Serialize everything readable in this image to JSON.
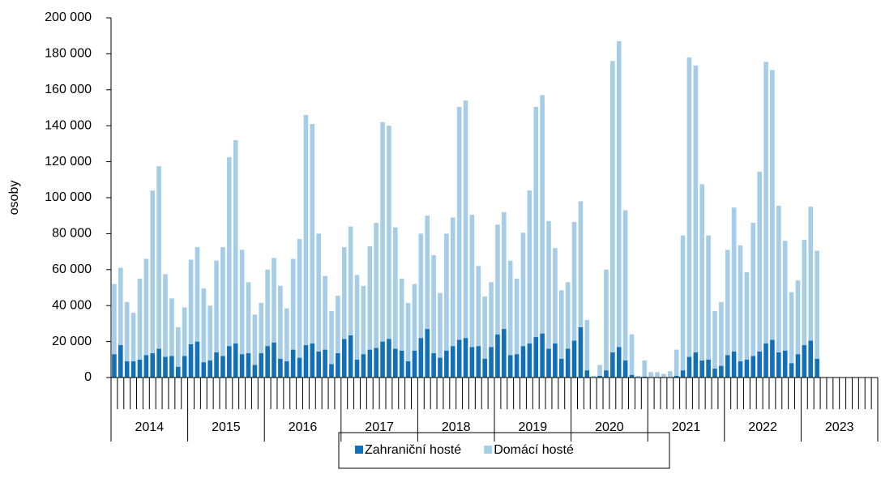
{
  "chart_data": {
    "type": "stacked-bar",
    "y_label": "osoby",
    "categories": [
      null,
      null,
      null,
      null,
      null,
      null,
      null,
      null,
      null,
      null,
      null,
      null,
      null,
      null,
      null,
      null,
      null,
      null,
      null,
      null,
      null,
      null,
      null,
      null,
      null,
      null,
      null,
      null,
      null,
      null,
      null,
      null,
      null,
      null,
      null,
      null,
      null,
      null,
      null,
      null,
      null,
      null,
      null,
      null,
      null,
      null,
      null,
      null,
      null,
      null,
      null,
      null,
      null,
      null,
      null,
      null,
      null,
      null,
      null,
      null,
      null,
      null,
      null,
      null,
      null,
      null,
      null,
      null,
      null,
      null,
      null,
      null,
      null,
      null,
      null,
      null,
      null,
      null,
      null,
      null,
      null,
      null,
      null,
      null,
      null,
      null,
      null,
      null,
      null,
      null,
      null,
      null,
      null,
      null,
      null,
      null,
      null,
      null,
      null,
      null,
      null,
      null,
      null,
      null,
      null,
      null,
      null,
      null,
      null,
      null,
      null,
      null,
      null,
      null,
      null,
      null,
      null,
      null,
      null,
      null
    ],
    "years": [
      "2014",
      "2015",
      "2016",
      "2017",
      "2018",
      "2019",
      "2020",
      "2021",
      "2022",
      "2023"
    ],
    "series": [
      {
        "name": "Zahraniční hosté",
        "color": "#1170b8",
        "values": [
          13000,
          18000,
          9000,
          9000,
          10000,
          12500,
          13500,
          16000,
          11500,
          12000,
          6000,
          12000,
          18500,
          20000,
          8500,
          9500,
          14000,
          12000,
          17500,
          19000,
          13000,
          13500,
          7000,
          13500,
          17500,
          19500,
          10500,
          9000,
          15500,
          11000,
          18000,
          19000,
          14500,
          15500,
          7500,
          13500,
          21500,
          23500,
          10000,
          13000,
          15500,
          16500,
          20000,
          21500,
          16000,
          15000,
          9000,
          15000,
          22000,
          27000,
          13500,
          11000,
          15000,
          17500,
          21000,
          22000,
          17000,
          17500,
          10500,
          17000,
          24000,
          27000,
          12500,
          13000,
          17500,
          19000,
          22500,
          24500,
          16000,
          19000,
          10500,
          16000,
          20500,
          28000,
          4000,
          300,
          1000,
          4000,
          14000,
          17000,
          9500,
          1500,
          200,
          500,
          300,
          300,
          300,
          300,
          1000,
          4000,
          11500,
          14000,
          9500,
          10000,
          5000,
          6500,
          12500,
          14500,
          9000,
          10000,
          12000,
          14500,
          19000,
          21000,
          14000,
          15000,
          8000,
          13000,
          18000,
          20500,
          10500,
          0,
          0,
          0,
          0,
          0,
          0,
          0,
          0,
          0
        ]
      },
      {
        "name": "Domácí hosté",
        "color": "#a6cde8",
        "values": [
          39000,
          43000,
          33000,
          27000,
          45000,
          53500,
          90500,
          101500,
          46000,
          32000,
          22000,
          27000,
          47000,
          52500,
          41000,
          30500,
          51000,
          60500,
          105000,
          113000,
          58000,
          39500,
          28000,
          28000,
          42500,
          47000,
          40500,
          29500,
          50500,
          66000,
          128000,
          122000,
          65500,
          41000,
          29500,
          32000,
          51000,
          60500,
          47000,
          38000,
          57500,
          69500,
          122000,
          118500,
          67500,
          40000,
          32500,
          37000,
          58000,
          63000,
          54500,
          36000,
          65000,
          71500,
          129500,
          132000,
          73500,
          44500,
          34500,
          36000,
          61000,
          65000,
          52500,
          42000,
          63000,
          85000,
          128000,
          132500,
          71000,
          53000,
          38000,
          37000,
          66000,
          70000,
          28000,
          700,
          6000,
          56000,
          162000,
          170000,
          83500,
          22500,
          800,
          9000,
          2700,
          2700,
          1700,
          3200,
          14500,
          75000,
          166500,
          159500,
          98000,
          69000,
          32000,
          35500,
          58500,
          80000,
          64500,
          48500,
          74000,
          100000,
          156500,
          150000,
          81500,
          61000,
          39500,
          41000,
          58500,
          74500,
          60000,
          0,
          0,
          0,
          0,
          0,
          0,
          0,
          0,
          0
        ]
      }
    ],
    "ylim": [
      0,
      200000
    ],
    "yticks": [
      0,
      {
        "value": 20000,
        "label": "20 000"
      },
      {
        "value": 40000,
        "label": "40 000"
      },
      {
        "value": 60000,
        "label": "60 000"
      },
      {
        "value": 80000,
        "label": "80 000"
      },
      {
        "value": 100000,
        "label": "100 000"
      },
      {
        "value": 120000,
        "label": "120 000"
      },
      {
        "value": 140000,
        "label": "140 000"
      },
      {
        "value": 160000,
        "label": "160 000"
      },
      {
        "value": 180000,
        "label": "180 000"
      },
      {
        "value": 200000,
        "label": "200 000"
      }
    ],
    "legend": "bottom"
  }
}
